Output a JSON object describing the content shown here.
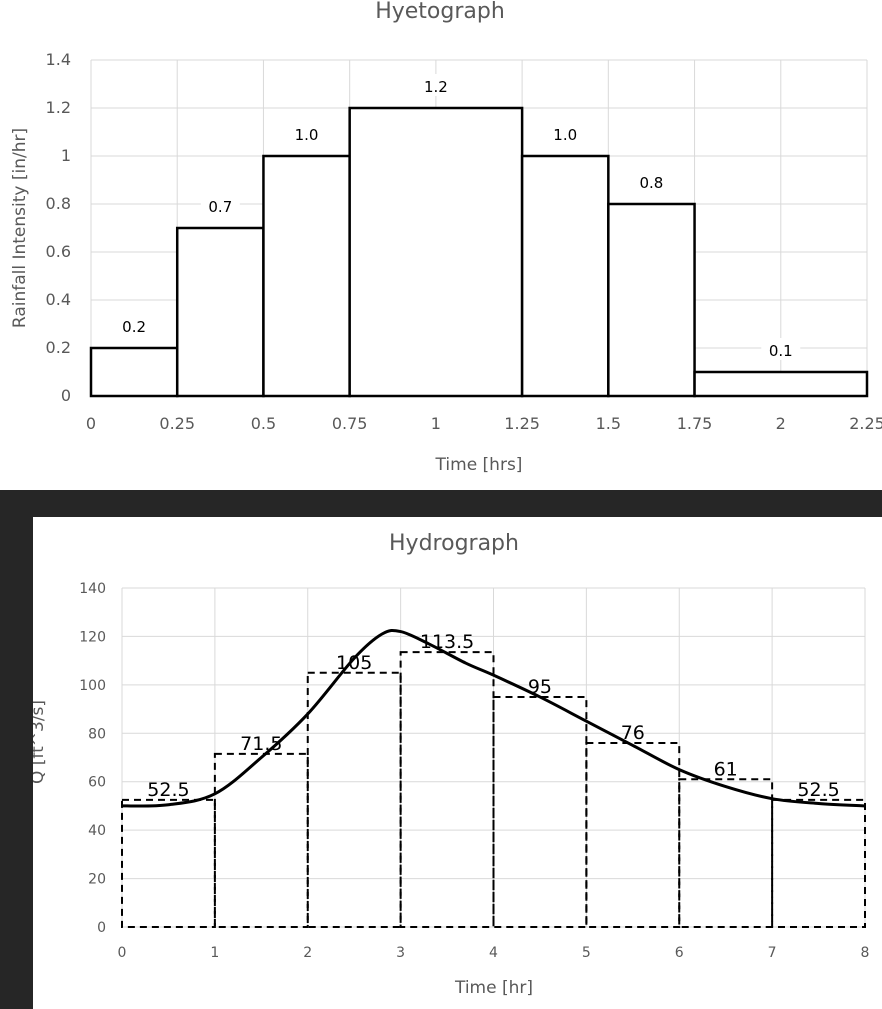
{
  "chart_data": [
    {
      "type": "bar",
      "title": "Hyetograph",
      "xlabel": "Time [hrs]",
      "ylabel": "Rainfall Intensity [in/hr]",
      "xlim": [
        0,
        2.25
      ],
      "ylim": [
        0,
        1.4
      ],
      "grid": true,
      "x_ticks": [
        "0",
        "0.25",
        "0.5",
        "0.75",
        "1",
        "1.25",
        "1.5",
        "1.75",
        "2",
        "2.25"
      ],
      "y_ticks": [
        "0",
        "0.2",
        "0.4",
        "0.6",
        "0.8",
        "1",
        "1.2",
        "1.4"
      ],
      "bars": [
        {
          "x0": 0,
          "x1": 0.25,
          "value": 0.2,
          "label": "0.2"
        },
        {
          "x0": 0.25,
          "x1": 0.5,
          "value": 0.7,
          "label": "0.7"
        },
        {
          "x0": 0.5,
          "x1": 0.75,
          "value": 1.0,
          "label": "1.0"
        },
        {
          "x0": 0.75,
          "x1": 1.25,
          "value": 1.2,
          "label": "1.2"
        },
        {
          "x0": 1.25,
          "x1": 1.5,
          "value": 1.0,
          "label": "1.0"
        },
        {
          "x0": 1.5,
          "x1": 1.75,
          "value": 0.8,
          "label": "0.8"
        },
        {
          "x0": 1.75,
          "x1": 2.25,
          "value": 0.1,
          "label": "0.1"
        }
      ]
    },
    {
      "type": "bar",
      "title": "Hydrograph",
      "xlabel": "Time [hr]",
      "ylabel": "Q [ft^3/s]",
      "xlim": [
        0,
        8
      ],
      "ylim": [
        0,
        140
      ],
      "grid": true,
      "x_ticks": [
        "0",
        "1",
        "2",
        "3",
        "4",
        "5",
        "6",
        "7",
        "8"
      ],
      "y_ticks": [
        "0",
        "20",
        "40",
        "60",
        "80",
        "100",
        "120",
        "140"
      ],
      "bars": [
        {
          "x0": 0,
          "x1": 1,
          "value": 52.5,
          "label": "52.5"
        },
        {
          "x0": 1,
          "x1": 2,
          "value": 71.5,
          "label": "71.5"
        },
        {
          "x0": 2,
          "x1": 3,
          "value": 105,
          "label": "105"
        },
        {
          "x0": 3,
          "x1": 4,
          "value": 113.5,
          "label": "113.5"
        },
        {
          "x0": 4,
          "x1": 5,
          "value": 95,
          "label": "95"
        },
        {
          "x0": 5,
          "x1": 6,
          "value": 76,
          "label": "76"
        },
        {
          "x0": 6,
          "x1": 7,
          "value": 61,
          "label": "61"
        },
        {
          "x0": 7,
          "x1": 8,
          "value": 52.5,
          "label": "52.5"
        }
      ],
      "curve": {
        "x": [
          0,
          0.5,
          1,
          1.5,
          2,
          2.5,
          2.8,
          3,
          3.3,
          3.7,
          4,
          4.5,
          5,
          5.5,
          6,
          6.5,
          7,
          7.5,
          8
        ],
        "y": [
          50,
          50.5,
          55,
          70,
          88,
          111,
          121,
          122,
          117,
          109,
          104,
          95,
          85,
          75,
          65,
          58,
          53,
          51,
          50
        ]
      }
    }
  ],
  "colors": {
    "bar_stroke": "#000000",
    "grid": "#d9d9d9",
    "text": "#595959",
    "dark_band": "#262626"
  }
}
